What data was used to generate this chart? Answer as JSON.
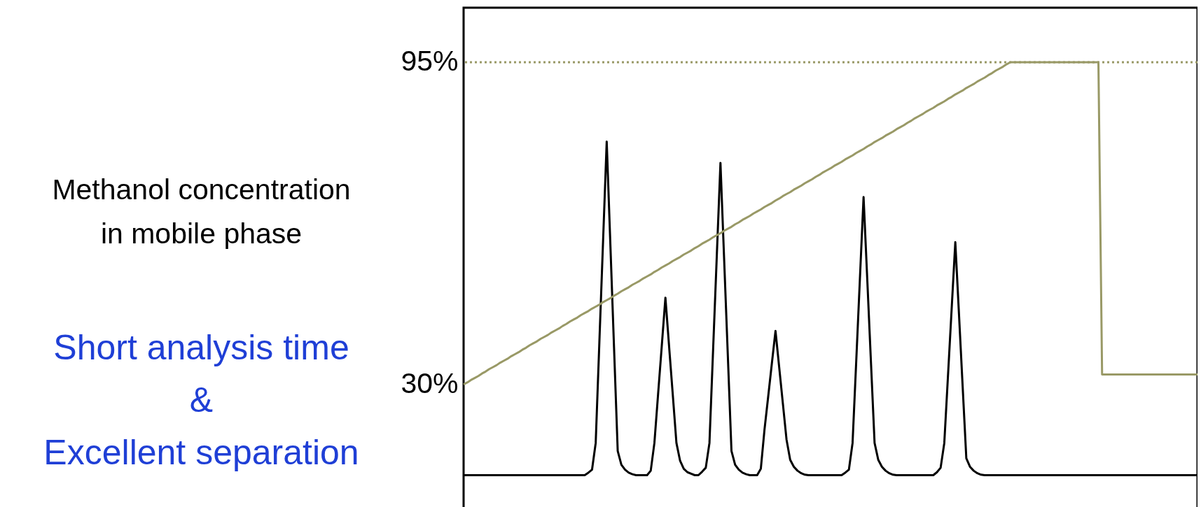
{
  "chart_data": {
    "type": "line",
    "ylabel": "Methanol concentration\nin mobile phase",
    "annotations": [
      "Short analysis time\n&\nExcellent separation"
    ],
    "categories": [
      null,
      null,
      null,
      null,
      null,
      null,
      null,
      null,
      null,
      null,
      null,
      null,
      null,
      null,
      null,
      null,
      null,
      null,
      null,
      null,
      null,
      null,
      null,
      null,
      null,
      null,
      null,
      null,
      null,
      null,
      null,
      null,
      null,
      null,
      null,
      null,
      null,
      null,
      null,
      null,
      null,
      null,
      null,
      null,
      null,
      null,
      null,
      null,
      null,
      null,
      null,
      null,
      null,
      null,
      null,
      null,
      null,
      null,
      null,
      null,
      null,
      null,
      null,
      null,
      null,
      null,
      null,
      null,
      null,
      null,
      null,
      null,
      null,
      null,
      null,
      null,
      null,
      null,
      null,
      null,
      null,
      null,
      null,
      null,
      null,
      null,
      null,
      null,
      null,
      null,
      null,
      null,
      null,
      null,
      null,
      null,
      null,
      null,
      null,
      null,
      null,
      null,
      null,
      null,
      null,
      null,
      null,
      null,
      null,
      null,
      null,
      null,
      null,
      null,
      null,
      null,
      null,
      null,
      null,
      null,
      null,
      null,
      null,
      null,
      null,
      null,
      null,
      null,
      null,
      null,
      null,
      null,
      null,
      null,
      null,
      null,
      null,
      null,
      null,
      null,
      null,
      null,
      null,
      null,
      null,
      null,
      null,
      null,
      null,
      null,
      null,
      null,
      null,
      null,
      null,
      null,
      null,
      null,
      null,
      null,
      null,
      null,
      null,
      null,
      null,
      null,
      null,
      null,
      null,
      null,
      null,
      null,
      null,
      null,
      null,
      null,
      null,
      null,
      null,
      null,
      null,
      null,
      null,
      null,
      null,
      null,
      null,
      null,
      null,
      null,
      null,
      null,
      null,
      null,
      null,
      null,
      null,
      null,
      null,
      null,
      null
    ],
    "ylim": [
      5,
      106
    ],
    "yticks": [
      {
        "value": 30,
        "label": "30%"
      },
      {
        "value": 95,
        "label": "95%"
      }
    ],
    "tick_labels": "y",
    "grid": false,
    "marker": "none",
    "series": [
      {
        "color": "#000000",
        "values": [
          11.7,
          11.7,
          11.7,
          11.7,
          11.7,
          11.7,
          11.7,
          11.7,
          11.7,
          11.7,
          11.7,
          11.7,
          11.7,
          11.7,
          11.7,
          11.7,
          11.7,
          11.7,
          11.7,
          11.7,
          11.7,
          11.7,
          11.7,
          11.7,
          11.7,
          11.7,
          11.7,
          11.7,
          11.7,
          11.7,
          11.7,
          11.7,
          11.7,
          11.7,
          12.2,
          12.8,
          18.2,
          38.5,
          58.7,
          79.0,
          58.2,
          37.4,
          16.6,
          13.8,
          12.8,
          12.2,
          11.9,
          11.7,
          11.7,
          11.7,
          11.7,
          12.6,
          18.2,
          28,
          37.7,
          47.5,
          37.7,
          28,
          18.2,
          14.6,
          13.0,
          12.3,
          12.0,
          11.7,
          11.7,
          12.4,
          13.2,
          18.2,
          37.1,
          55.9,
          74.7,
          55.3,
          36.0,
          16.6,
          13.8,
          12.8,
          12.2,
          11.9,
          11.7,
          11.7,
          11.7,
          13.0,
          20.9,
          27.5,
          34.2,
          40.8,
          33.5,
          26.2,
          18.9,
          14.8,
          13.4,
          12.6,
          12.1,
          11.8,
          11.7,
          11.7,
          11.7,
          11.7,
          11.7,
          11.7,
          11.7,
          11.7,
          11.7,
          11.7,
          12.2,
          12.8,
          18.2,
          34.7,
          51.3,
          67.8,
          51.3,
          34.7,
          18.2,
          14.8,
          13.4,
          12.6,
          12.1,
          11.8,
          11.7,
          11.7,
          11.7,
          11.7,
          11.7,
          11.7,
          11.7,
          11.7,
          11.7,
          11.7,
          11.7,
          12.3,
          13.2,
          18.2,
          31.7,
          45.2,
          58.7,
          44.2,
          29.6,
          15.1,
          13.4,
          12.6,
          12.1,
          11.8,
          11.7,
          11.7,
          11.7,
          11.7,
          11.7,
          11.7,
          11.7,
          11.7,
          11.7,
          11.7,
          11.7,
          11.7,
          11.7,
          11.7,
          11.7,
          11.7,
          11.7,
          11.7,
          11.7,
          11.7,
          11.7,
          11.7,
          11.7,
          11.7,
          11.7,
          11.7,
          11.7,
          11.7,
          11.7,
          11.7,
          11.7,
          11.7,
          11.7,
          11.7,
          11.7,
          11.7,
          11.7,
          11.7,
          11.7,
          11.7,
          11.7,
          11.7,
          11.7,
          11.7,
          11.7,
          11.7,
          11.7,
          11.7,
          11.7,
          11.7,
          11.7,
          11.7,
          11.7,
          11.7,
          11.7,
          11.7,
          11.7,
          11.7,
          11.7
        ]
      },
      {
        "color": "#999966",
        "values": [
          30.0,
          30.4,
          30.9,
          31.3,
          31.7,
          32.2,
          32.6,
          33.1,
          33.5,
          33.9,
          34.4,
          34.8,
          35.2,
          35.7,
          36.1,
          36.5,
          37.0,
          37.4,
          37.9,
          38.3,
          38.7,
          39.2,
          39.6,
          40.0,
          40.5,
          40.9,
          41.3,
          41.8,
          42.2,
          42.7,
          43.1,
          43.5,
          44.0,
          44.4,
          44.8,
          45.3,
          45.7,
          46.1,
          46.6,
          47.0,
          47.4,
          47.9,
          48.3,
          48.8,
          49.2,
          49.6,
          50.1,
          50.5,
          50.9,
          51.4,
          51.8,
          52.2,
          52.7,
          53.1,
          53.6,
          54.0,
          54.4,
          54.9,
          55.3,
          55.7,
          56.2,
          56.6,
          57.0,
          57.5,
          57.9,
          58.4,
          58.8,
          59.2,
          59.7,
          60.1,
          60.5,
          61.0,
          61.4,
          61.8,
          62.3,
          62.7,
          63.2,
          63.6,
          64.0,
          64.5,
          64.9,
          65.3,
          65.8,
          66.2,
          66.6,
          67.1,
          67.5,
          68.0,
          68.4,
          68.8,
          69.3,
          69.7,
          70.1,
          70.6,
          71.0,
          71.4,
          71.9,
          72.3,
          72.8,
          73.2,
          73.6,
          74.1,
          74.5,
          74.9,
          75.4,
          75.8,
          76.2,
          76.7,
          77.1,
          77.5,
          78.0,
          78.4,
          78.9,
          79.3,
          79.7,
          80.2,
          80.6,
          81.0,
          81.5,
          81.9,
          82.3,
          82.8,
          83.2,
          83.7,
          84.1,
          84.5,
          85.0,
          85.4,
          85.8,
          86.3,
          86.7,
          87.1,
          87.6,
          88.0,
          88.5,
          88.9,
          89.3,
          89.8,
          90.2,
          90.6,
          91.1,
          91.5,
          91.9,
          92.4,
          92.8,
          93.3,
          93.7,
          94.1,
          94.6,
          95.0,
          95,
          95,
          95,
          95,
          95,
          95,
          95,
          95,
          95,
          95,
          95,
          95,
          95,
          95,
          95,
          95,
          95,
          95,
          95,
          95,
          95,
          95,
          95,
          95,
          32,
          32,
          32,
          32,
          32,
          32,
          32,
          32,
          32,
          32,
          32,
          32,
          32,
          32,
          32,
          32,
          32,
          32,
          32,
          32,
          32,
          32,
          32,
          32,
          32,
          32,
          32
        ]
      }
    ],
    "ref_lines": [
      {
        "axis": "y",
        "value": 95,
        "color": "#999966",
        "line_style": "dotted"
      }
    ]
  }
}
